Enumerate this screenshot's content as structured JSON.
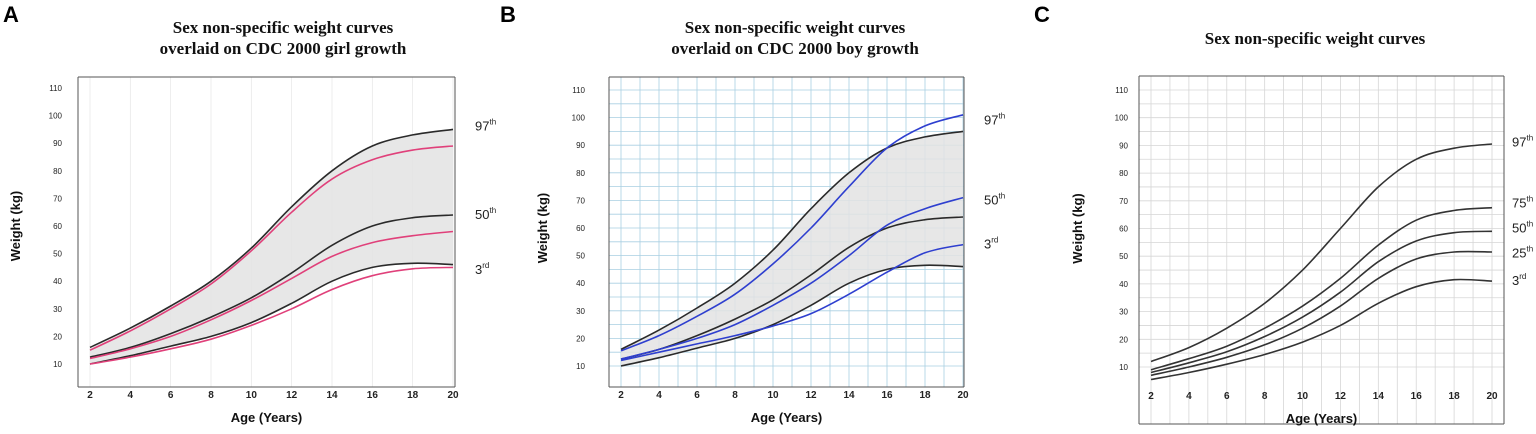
{
  "chart_data": [
    {
      "type": "line",
      "panel_label": "A",
      "title_lines": [
        "Sex non-specific weight curves",
        "overlaid on CDC 2000 girl growth"
      ],
      "xlabel": "Age (Years)",
      "ylabel": "Weight (kg)",
      "xlim": [
        2,
        20
      ],
      "ylim": [
        10,
        110
      ],
      "x_ticks": [
        "2",
        "4",
        "6",
        "8",
        "10",
        "12",
        "14",
        "16",
        "18",
        "20"
      ],
      "y_ticks": [
        "10",
        "20",
        "30",
        "40",
        "50",
        "60",
        "70",
        "80",
        "90",
        "100",
        "110"
      ],
      "shaded_band": [
        "97th",
        "3rd"
      ],
      "grid": "faint",
      "percentile_labels": [
        {
          "base": "97",
          "sup": "th",
          "y": 96
        },
        {
          "base": "50",
          "sup": "th",
          "y": 64
        },
        {
          "base": "3",
          "sup": "rd",
          "y": 44
        }
      ],
      "series": [
        {
          "name": "97th",
          "color": "#2a2a2a",
          "x": [
            2,
            4,
            6,
            8,
            10,
            12,
            14,
            16,
            18,
            20
          ],
          "values": [
            16,
            23,
            31,
            40,
            52,
            67,
            80,
            89,
            93,
            95
          ]
        },
        {
          "name": "50th",
          "color": "#2a2a2a",
          "x": [
            2,
            4,
            6,
            8,
            10,
            12,
            14,
            16,
            18,
            20
          ],
          "values": [
            12.5,
            16,
            21,
            27,
            34,
            43,
            53,
            60,
            63,
            64
          ]
        },
        {
          "name": "3rd",
          "color": "#2a2a2a",
          "x": [
            2,
            4,
            6,
            8,
            10,
            12,
            14,
            16,
            18,
            20
          ],
          "values": [
            10,
            13,
            16.5,
            20,
            25,
            32,
            40,
            45,
            46.5,
            46
          ]
        },
        {
          "name": "CDC girl 97th",
          "color": "#e0407a",
          "x": [
            2,
            4,
            6,
            8,
            10,
            12,
            14,
            16,
            18,
            20
          ],
          "values": [
            15,
            22,
            30,
            39,
            51,
            65,
            77,
            84,
            87.5,
            89
          ]
        },
        {
          "name": "CDC girl 50th",
          "color": "#e0407a",
          "x": [
            2,
            4,
            6,
            8,
            10,
            12,
            14,
            16,
            18,
            20
          ],
          "values": [
            12,
            15.5,
            20,
            26,
            33,
            41,
            49,
            54,
            56.5,
            58
          ]
        },
        {
          "name": "CDC girl 3rd",
          "color": "#e0407a",
          "x": [
            2,
            4,
            6,
            8,
            10,
            12,
            14,
            16,
            18,
            20
          ],
          "values": [
            10,
            12.5,
            15.5,
            19,
            24,
            30,
            37,
            42,
            44.5,
            45
          ]
        }
      ]
    },
    {
      "type": "line",
      "panel_label": "B",
      "title_lines": [
        "Sex non-specific weight curves",
        "overlaid on CDC 2000 boy growth"
      ],
      "xlabel": "Age (Years)",
      "ylabel": "Weight (kg)",
      "xlim": [
        2,
        20
      ],
      "ylim": [
        10,
        110
      ],
      "x_ticks": [
        "2",
        "4",
        "6",
        "8",
        "10",
        "12",
        "14",
        "16",
        "18",
        "20"
      ],
      "y_ticks": [
        "10",
        "20",
        "30",
        "40",
        "50",
        "60",
        "70",
        "80",
        "90",
        "100",
        "110"
      ],
      "shaded_band": [
        "97th",
        "3rd"
      ],
      "grid": "blue",
      "percentile_labels": [
        {
          "base": "97",
          "sup": "th",
          "y": 99
        },
        {
          "base": "50",
          "sup": "th",
          "y": 70
        },
        {
          "base": "3",
          "sup": "rd",
          "y": 54
        }
      ],
      "series": [
        {
          "name": "97th",
          "color": "#2a2a2a",
          "x": [
            2,
            4,
            6,
            8,
            10,
            12,
            14,
            16,
            18,
            20
          ],
          "values": [
            16,
            23,
            31,
            40,
            52,
            67,
            80,
            89,
            93,
            95
          ]
        },
        {
          "name": "50th",
          "color": "#2a2a2a",
          "x": [
            2,
            4,
            6,
            8,
            10,
            12,
            14,
            16,
            18,
            20
          ],
          "values": [
            12.5,
            16,
            21,
            27,
            34,
            43,
            53,
            60,
            63,
            64
          ]
        },
        {
          "name": "3rd",
          "color": "#2a2a2a",
          "x": [
            2,
            4,
            6,
            8,
            10,
            12,
            14,
            16,
            18,
            20
          ],
          "values": [
            10,
            13,
            16.5,
            20,
            25,
            32,
            40,
            45,
            46.5,
            46
          ]
        },
        {
          "name": "CDC boy 97th",
          "color": "#2e3fcf",
          "x": [
            2,
            4,
            6,
            8,
            10,
            12,
            14,
            16,
            18,
            20
          ],
          "values": [
            15.5,
            21,
            28,
            36,
            47,
            60,
            75,
            89,
            97,
            101
          ]
        },
        {
          "name": "CDC boy 50th",
          "color": "#2e3fcf",
          "x": [
            2,
            4,
            6,
            8,
            10,
            12,
            14,
            16,
            18,
            20
          ],
          "values": [
            12.5,
            16,
            20,
            25,
            32,
            40,
            50,
            61,
            67,
            71
          ]
        },
        {
          "name": "CDC boy 3rd",
          "color": "#2e3fcf",
          "x": [
            2,
            4,
            6,
            8,
            10,
            12,
            14,
            16,
            18,
            20
          ],
          "values": [
            12,
            15,
            18,
            21,
            24.5,
            29,
            36,
            44,
            51,
            54
          ]
        }
      ]
    },
    {
      "type": "line",
      "panel_label": "C",
      "title_lines": [
        "Sex non-specific weight curves"
      ],
      "xlabel": "Age (Years)",
      "ylabel": "Weight (kg)",
      "xlim": [
        2,
        20
      ],
      "ylim": [
        10,
        110
      ],
      "x_ticks": [
        "2",
        "4",
        "6",
        "8",
        "10",
        "12",
        "14",
        "16",
        "18",
        "20"
      ],
      "y_ticks": [
        "10",
        "20",
        "30",
        "40",
        "50",
        "60",
        "70",
        "80",
        "90",
        "100",
        "110"
      ],
      "shaded_band": null,
      "grid": "gray",
      "percentile_labels": [
        {
          "base": "97",
          "sup": "th",
          "y": 91
        },
        {
          "base": "75",
          "sup": "th",
          "y": 69
        },
        {
          "base": "50",
          "sup": "th",
          "y": 60
        },
        {
          "base": "25",
          "sup": "th",
          "y": 51
        },
        {
          "base": "3",
          "sup": "rd",
          "y": 41
        }
      ],
      "series": [
        {
          "name": "97th",
          "color": "#333333",
          "x": [
            2,
            4,
            6,
            8,
            10,
            12,
            14,
            16,
            18,
            20
          ],
          "values": [
            12,
            17,
            24,
            33,
            45,
            60,
            75,
            85,
            89,
            90.5
          ]
        },
        {
          "name": "75th",
          "color": "#333333",
          "x": [
            2,
            4,
            6,
            8,
            10,
            12,
            14,
            16,
            18,
            20
          ],
          "values": [
            9,
            13,
            17.5,
            24,
            32,
            42,
            54,
            63,
            66.5,
            67.5
          ]
        },
        {
          "name": "50th",
          "color": "#333333",
          "x": [
            2,
            4,
            6,
            8,
            10,
            12,
            14,
            16,
            18,
            20
          ],
          "values": [
            8,
            11.5,
            15.5,
            21,
            28,
            37,
            48,
            55.5,
            58.5,
            59
          ]
        },
        {
          "name": "25th",
          "color": "#333333",
          "x": [
            2,
            4,
            6,
            8,
            10,
            12,
            14,
            16,
            18,
            20
          ],
          "values": [
            7,
            10,
            13.5,
            18,
            24,
            32,
            42,
            49,
            51.5,
            51.5
          ]
        },
        {
          "name": "3rd",
          "color": "#333333",
          "x": [
            2,
            4,
            6,
            8,
            10,
            12,
            14,
            16,
            18,
            20
          ],
          "values": [
            5.5,
            8,
            11,
            14.5,
            19,
            25,
            33,
            39,
            41.5,
            41
          ]
        }
      ]
    }
  ]
}
